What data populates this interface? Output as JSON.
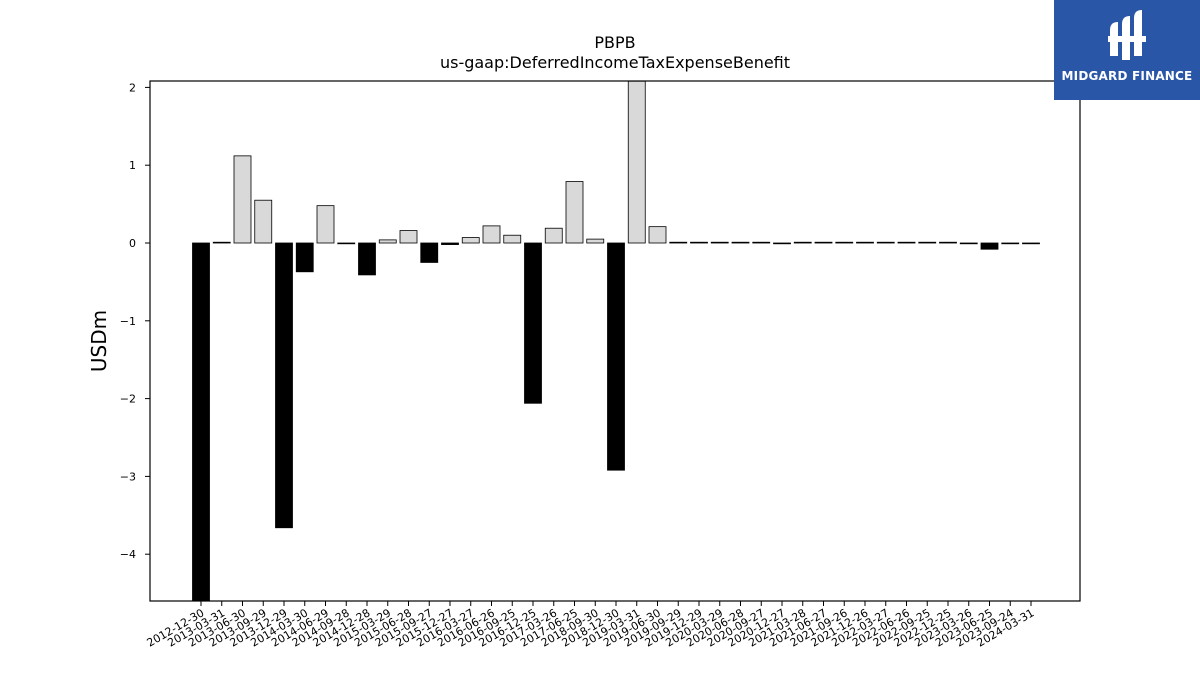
{
  "chart_data": {
    "type": "bar",
    "title": "PBPB",
    "subtitle": "us-gaap:DeferredIncomeTaxExpenseBenefit",
    "ylabel": "USDm",
    "xlabel": "",
    "ylim": [
      -4.6,
      2.08
    ],
    "yticks": [
      2,
      1,
      0,
      -1,
      -2,
      -3,
      -4
    ],
    "ytick_labels": [
      "2",
      "1",
      "0",
      "−1",
      "−2",
      "−3",
      "−4"
    ],
    "grid": false,
    "colors": {
      "positive": "#d9d9d9",
      "negative": "#000000",
      "edge": "#000000"
    },
    "categories": [
      "2012-12-30",
      "2013-03-31",
      "2013-06-30",
      "2013-09-29",
      "2013-12-29",
      "2014-03-30",
      "2014-06-29",
      "2014-09-28",
      "2014-12-28",
      "2015-03-29",
      "2015-06-28",
      "2015-09-27",
      "2015-12-27",
      "2016-03-27",
      "2016-06-26",
      "2016-09-25",
      "2016-12-25",
      "2017-03-26",
      "2017-06-25",
      "2018-09-30",
      "2018-12-30",
      "2019-03-31",
      "2019-06-30",
      "2019-09-29",
      "2019-12-29",
      "2020-03-29",
      "2020-06-28",
      "2020-09-27",
      "2020-12-27",
      "2021-03-28",
      "2021-06-27",
      "2021-09-26",
      "2021-12-26",
      "2022-03-27",
      "2022-06-26",
      "2022-09-25",
      "2022-12-25",
      "2023-03-26",
      "2023-06-25",
      "2023-09-24",
      "2024-03-31"
    ],
    "values": [
      -4.6,
      0.01,
      1.12,
      0.55,
      -3.66,
      -0.37,
      0.48,
      0.0,
      -0.41,
      0.04,
      0.16,
      -0.25,
      -0.02,
      0.07,
      0.22,
      0.1,
      -2.06,
      0.19,
      0.79,
      0.05,
      -2.92,
      2.08,
      0.21,
      0.01,
      0.01,
      0.01,
      0.01,
      0.01,
      0.0,
      0.01,
      0.01,
      0.01,
      0.01,
      0.01,
      0.01,
      0.01,
      0.01,
      0.0,
      -0.08,
      0.0,
      0.0
    ]
  },
  "logo": {
    "text": "MIDGARD FINANCE",
    "background": "#2a56a8"
  }
}
